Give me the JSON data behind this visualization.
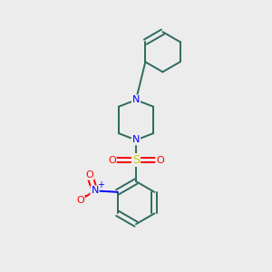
{
  "background_color": "#ececec",
  "bond_color": "#2d6b5e",
  "atom_colors": {
    "N": "#0000ff",
    "O": "#ff0000",
    "S": "#cccc00",
    "C": "#2d6b5e"
  },
  "figsize": [
    3.0,
    3.0
  ],
  "dpi": 100,
  "xlim": [
    0,
    10
  ],
  "ylim": [
    0,
    10
  ]
}
